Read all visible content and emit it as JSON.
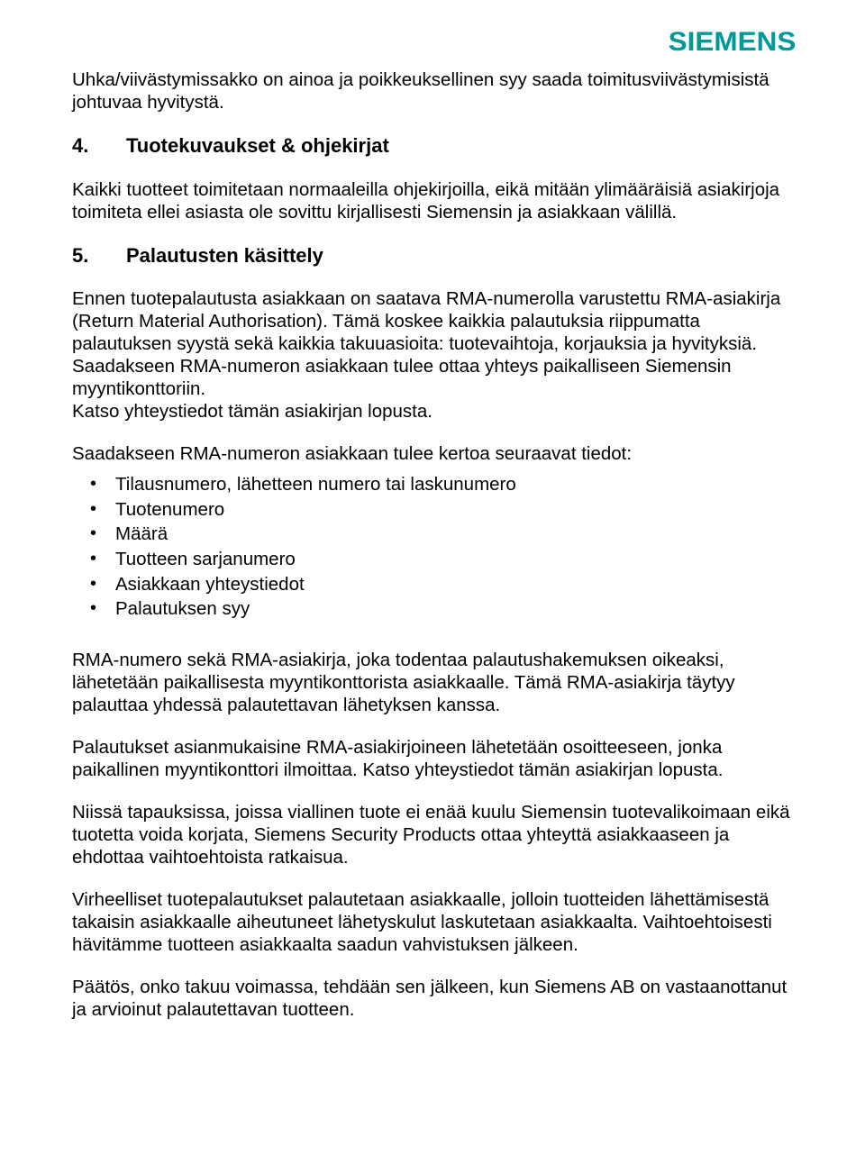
{
  "brand": {
    "logo_text": "SIEMENS",
    "logo_color": "#009999"
  },
  "p_intro": "Uhka/viivästymissakko on ainoa ja poikkeuksellinen syy saada toimitusviivästymisistä johtuvaa hyvitystä.",
  "h4": {
    "num": "4.",
    "title": "Tuotekuvaukset & ohjekirjat"
  },
  "p_h4_1": "Kaikki tuotteet toimitetaan normaaleilla ohjekirjoilla, eikä mitään ylimääräisiä asiakirjoja toimiteta ellei asiasta ole sovittu kirjallisesti Siemensin ja asiakkaan välillä.",
  "h5": {
    "num": "5.",
    "title": "Palautusten käsittely"
  },
  "p_h5_1": "Ennen tuotepalautusta asiakkaan on saatava RMA-numerolla varustettu RMA-asiakirja (Return Material Authorisation). Tämä koskee kaikkia palautuksia riippumatta palautuksen syystä sekä kaikkia takuuasioita: tuotevaihtoja, korjauksia ja hyvityksiä. Saadakseen RMA-numeron asiakkaan tulee ottaa yhteys paikalliseen Siemensin myyntikonttoriin.\nKatso yhteystiedot tämän asiakirjan lopusta.",
  "p_h5_lead": "Saadakseen RMA-numeron asiakkaan tulee kertoa seuraavat tiedot:",
  "bullets": [
    "Tilausnumero, lähetteen numero tai laskunumero",
    "Tuotenumero",
    "Määrä",
    "Tuotteen sarjanumero",
    "Asiakkaan yhteystiedot",
    "Palautuksen syy"
  ],
  "p_after_1": "RMA-numero sekä RMA-asiakirja, joka todentaa palautushakemuksen oikeaksi, lähetetään paikallisesta myyntikonttorista asiakkaalle. Tämä RMA-asiakirja täytyy palauttaa yhdessä palautettavan lähetyksen kanssa.",
  "p_after_2": "Palautukset asianmukaisine RMA-asiakirjoineen lähetetään osoitteeseen, jonka paikallinen myyntikonttori ilmoittaa. Katso yhteystiedot tämän asiakirjan lopusta.",
  "p_after_3": "Niissä tapauksissa, joissa viallinen tuote ei enää kuulu Siemensin tuotevalikoimaan eikä tuotetta voida korjata, Siemens Security Products ottaa yhteyttä asiakkaaseen ja ehdottaa vaihtoehtoista ratkaisua.",
  "p_after_4": "Virheelliset tuotepalautukset palautetaan asiakkaalle, jolloin tuotteiden lähettämisestä takaisin asiakkaalle aiheutuneet lähetyskulut laskutetaan asiakkaalta. Vaihtoehtoisesti hävitämme tuotteen asiakkaalta saadun vahvistuksen jälkeen.",
  "p_after_5": "Päätös, onko takuu voimassa, tehdään sen jälkeen, kun Siemens AB on vastaanottanut ja arvioinut palautettavan tuotteen."
}
